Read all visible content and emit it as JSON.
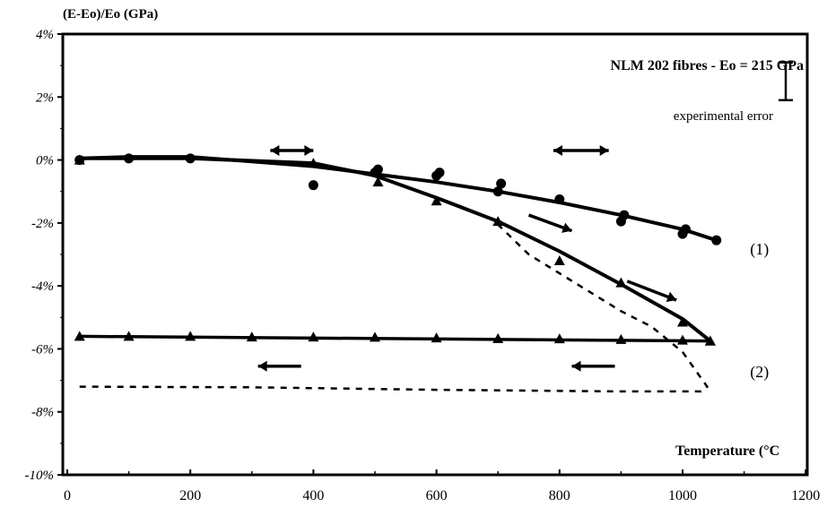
{
  "chart_data": {
    "type": "line",
    "title": "NLM 202 fibres  -  Eo = 215 GPa",
    "ylabel": "(E-Eo)/Eo  (GPa)",
    "xlabel": "Temperature (°C",
    "xlim": [
      0,
      1200
    ],
    "ylim": [
      -10,
      4
    ],
    "x_ticks": [
      0,
      200,
      400,
      600,
      800,
      1000,
      1200
    ],
    "x_tick_labels": [
      "0",
      "200",
      "400",
      "600",
      "800",
      "1000",
      "1200"
    ],
    "y_ticks": [
      4,
      2,
      0,
      -2,
      -4,
      -6,
      -8,
      -10
    ],
    "y_tick_labels": [
      "4%",
      "2%",
      "0%",
      "-2%",
      "-4%",
      "-6%",
      "-8%",
      "-10%"
    ],
    "error_bar_label": "experimental error",
    "error_bar_range": [
      1.9,
      3.1
    ],
    "series": [
      {
        "name": "(1)",
        "marker": "circle",
        "fit_curve": [
          [
            20,
            0.05
          ],
          [
            100,
            0.1
          ],
          [
            200,
            0.1
          ],
          [
            300,
            -0.05
          ],
          [
            400,
            -0.2
          ],
          [
            500,
            -0.45
          ],
          [
            600,
            -0.7
          ],
          [
            700,
            -1.0
          ],
          [
            800,
            -1.35
          ],
          [
            900,
            -1.75
          ],
          [
            1000,
            -2.2
          ],
          [
            1055,
            -2.55
          ]
        ],
        "points": [
          [
            20,
            0
          ],
          [
            100,
            0.05
          ],
          [
            200,
            0.05
          ],
          [
            400,
            -0.8
          ],
          [
            500,
            -0.4
          ],
          [
            505,
            -0.3
          ],
          [
            600,
            -0.5
          ],
          [
            605,
            -0.4
          ],
          [
            700,
            -1.0
          ],
          [
            705,
            -0.75
          ],
          [
            800,
            -1.25
          ],
          [
            900,
            -1.95
          ],
          [
            905,
            -1.75
          ],
          [
            1000,
            -2.35
          ],
          [
            1005,
            -2.2
          ],
          [
            1055,
            -2.55
          ]
        ]
      },
      {
        "name": "(2)",
        "marker": "triangle",
        "fit_curve": [
          [
            20,
            0.05
          ],
          [
            200,
            0.05
          ],
          [
            400,
            -0.1
          ],
          [
            500,
            -0.5
          ],
          [
            600,
            -1.2
          ],
          [
            700,
            -1.95
          ],
          [
            800,
            -2.9
          ],
          [
            900,
            -3.95
          ],
          [
            1000,
            -5.05
          ],
          [
            1045,
            -5.75
          ]
        ],
        "points": [
          [
            20,
            0
          ],
          [
            400,
            -0.1
          ],
          [
            505,
            -0.7
          ],
          [
            600,
            -1.3
          ],
          [
            700,
            -1.95
          ],
          [
            800,
            -3.2
          ],
          [
            900,
            -3.9
          ],
          [
            1000,
            -5.15
          ],
          [
            1045,
            -5.75
          ]
        ],
        "cooling_line": [
          [
            20,
            -5.6
          ],
          [
            1045,
            -5.75
          ]
        ],
        "cooling_points": [
          [
            20,
            -5.6
          ],
          [
            100,
            -5.6
          ],
          [
            200,
            -5.6
          ],
          [
            300,
            -5.62
          ],
          [
            400,
            -5.62
          ],
          [
            500,
            -5.63
          ],
          [
            600,
            -5.65
          ],
          [
            700,
            -5.67
          ],
          [
            800,
            -5.68
          ],
          [
            900,
            -5.7
          ],
          [
            1000,
            -5.72
          ],
          [
            1045,
            -5.75
          ]
        ]
      }
    ],
    "dashed_curve": [
      [
        20,
        -7.2
      ],
      [
        300,
        -7.22
      ],
      [
        600,
        -7.3
      ],
      [
        900,
        -7.35
      ],
      [
        1030,
        -7.35
      ],
      [
        1040,
        -7.2
      ],
      [
        1000,
        -6.1
      ],
      [
        950,
        -5.3
      ],
      [
        900,
        -4.8
      ],
      [
        850,
        -4.2
      ],
      [
        800,
        -3.6
      ],
      [
        750,
        -3.0
      ],
      [
        700,
        -2.05
      ]
    ],
    "series_labels": [
      {
        "text": "(1)",
        "x": 1125,
        "y": -3.0
      },
      {
        "text": "(2)",
        "x": 1125,
        "y": -6.9
      }
    ],
    "arrows": [
      {
        "from": [
          330,
          0.3
        ],
        "to": [
          400,
          0.3
        ],
        "double": true
      },
      {
        "from": [
          790,
          0.3
        ],
        "to": [
          880,
          0.3
        ],
        "double": true
      },
      {
        "from": [
          750,
          -1.75
        ],
        "to": [
          820,
          -2.25
        ],
        "double": false
      },
      {
        "from": [
          910,
          -3.85
        ],
        "to": [
          990,
          -4.45
        ],
        "double": false
      },
      {
        "from": [
          380,
          -6.55
        ],
        "to": [
          310,
          -6.55
        ],
        "double": false
      },
      {
        "from": [
          890,
          -6.55
        ],
        "to": [
          820,
          -6.55
        ],
        "double": false
      }
    ]
  }
}
